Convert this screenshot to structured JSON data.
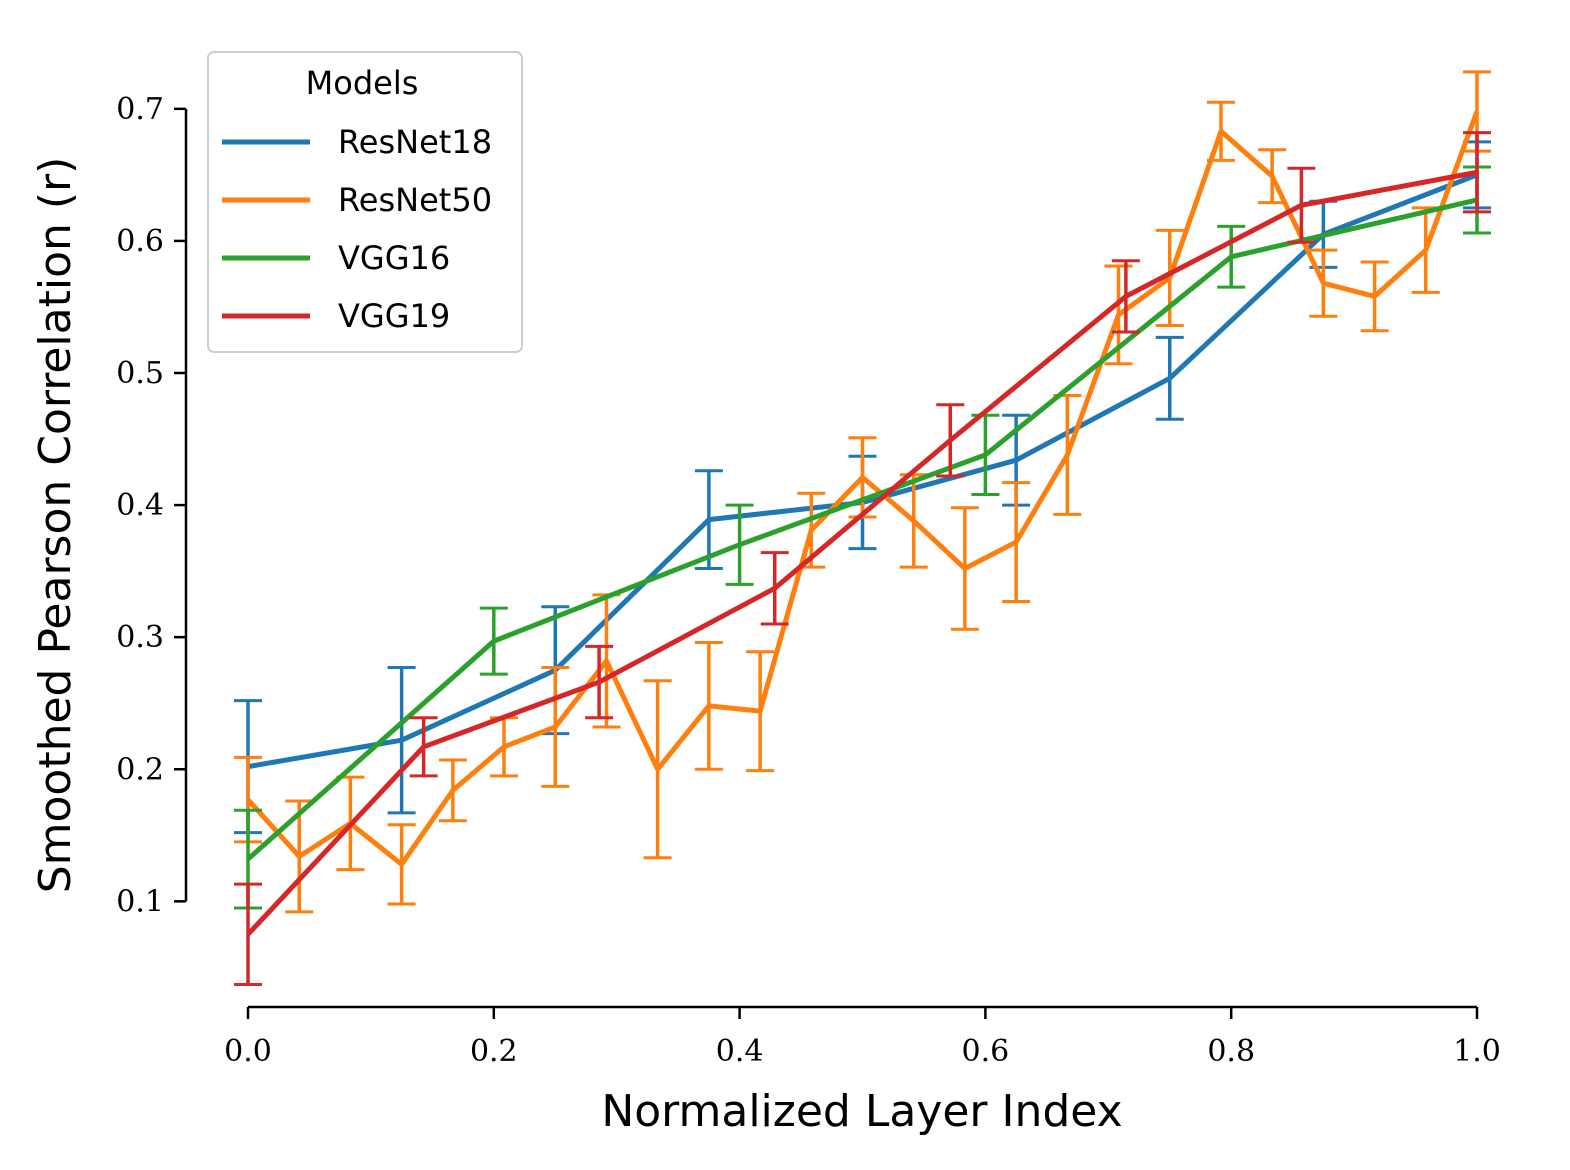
{
  "chart_data": {
    "type": "line",
    "xlabel": "Normalized Layer Index",
    "ylabel": "Smoothed Pearson Correlation (r)",
    "xlim": [
      0.0,
      1.0
    ],
    "ylim": [
      0.02,
      0.74
    ],
    "xticks": [
      0.0,
      0.2,
      0.4,
      0.6,
      0.8,
      1.0
    ],
    "yticks": [
      0.1,
      0.2,
      0.3,
      0.4,
      0.5,
      0.6,
      0.7
    ],
    "xtick_labels": [
      "0.0",
      "0.2",
      "0.4",
      "0.6",
      "0.8",
      "1.0"
    ],
    "ytick_labels": [
      "0.1",
      "0.2",
      "0.3",
      "0.4",
      "0.5",
      "0.6",
      "0.7"
    ],
    "grid": false,
    "legend": {
      "title": "Models",
      "position": "top-left"
    },
    "series": [
      {
        "name": "ResNet18",
        "color": "#1f77b4",
        "x": [
          0.0,
          0.125,
          0.25,
          0.375,
          0.5,
          0.625,
          0.75,
          0.875,
          1.0
        ],
        "y": [
          0.202,
          0.222,
          0.275,
          0.389,
          0.402,
          0.434,
          0.496,
          0.605,
          0.65
        ],
        "err": [
          0.05,
          0.055,
          0.048,
          0.037,
          0.035,
          0.034,
          0.031,
          0.025,
          0.025
        ]
      },
      {
        "name": "ResNet50",
        "color": "#ff7f0e",
        "x": [
          0.0,
          0.0417,
          0.0833,
          0.125,
          0.1667,
          0.2083,
          0.25,
          0.2917,
          0.3333,
          0.375,
          0.4167,
          0.4583,
          0.5,
          0.5417,
          0.5833,
          0.625,
          0.6667,
          0.7083,
          0.75,
          0.7917,
          0.8333,
          0.875,
          0.9167,
          0.9583,
          1.0
        ],
        "y": [
          0.177,
          0.134,
          0.159,
          0.128,
          0.184,
          0.217,
          0.232,
          0.282,
          0.2,
          0.248,
          0.244,
          0.381,
          0.421,
          0.388,
          0.352,
          0.372,
          0.438,
          0.544,
          0.572,
          0.683,
          0.649,
          0.568,
          0.558,
          0.593,
          0.698
        ],
        "err": [
          0.032,
          0.042,
          0.035,
          0.03,
          0.023,
          0.022,
          0.045,
          0.05,
          0.067,
          0.048,
          0.045,
          0.028,
          0.03,
          0.035,
          0.046,
          0.045,
          0.045,
          0.037,
          0.036,
          0.022,
          0.02,
          0.025,
          0.026,
          0.032,
          0.03
        ]
      },
      {
        "name": "VGG16",
        "color": "#2ca02c",
        "x": [
          0.0,
          0.2,
          0.4,
          0.6,
          0.8,
          1.0
        ],
        "y": [
          0.132,
          0.297,
          0.37,
          0.438,
          0.588,
          0.631
        ],
        "err": [
          0.037,
          0.025,
          0.03,
          0.03,
          0.023,
          0.025
        ]
      },
      {
        "name": "VGG19",
        "color": "#d62728",
        "x": [
          0.0,
          0.1429,
          0.2857,
          0.4286,
          0.5714,
          0.7143,
          0.8571,
          1.0
        ],
        "y": [
          0.075,
          0.217,
          0.266,
          0.337,
          0.449,
          0.558,
          0.627,
          0.652
        ],
        "err": [
          0.038,
          0.022,
          0.027,
          0.027,
          0.027,
          0.027,
          0.028,
          0.03
        ]
      }
    ]
  }
}
